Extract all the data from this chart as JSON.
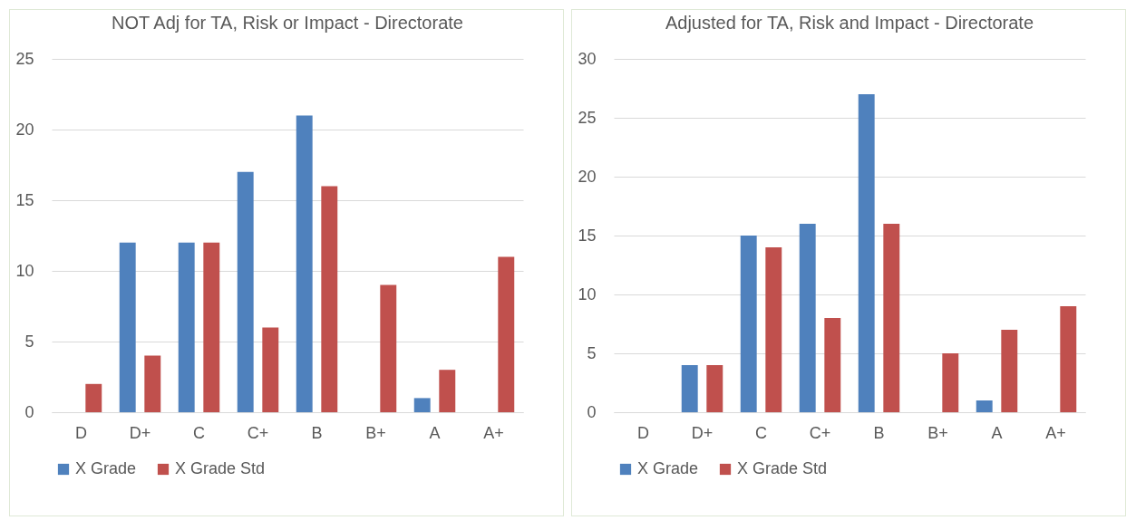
{
  "chart_data": [
    {
      "type": "bar",
      "title": "NOT Adj for TA, Risk or  Impact -  Directorate",
      "categories": [
        "D",
        "D+",
        "C",
        "C+",
        "B",
        "B+",
        "A",
        "A+"
      ],
      "series": [
        {
          "name": "X Grade",
          "color": "#4f81bd",
          "values": [
            0,
            12,
            12,
            17,
            21,
            0,
            1,
            0
          ]
        },
        {
          "name": "X Grade Std",
          "color": "#c0504d",
          "values": [
            2,
            4,
            12,
            6,
            16,
            9,
            3,
            11
          ]
        }
      ],
      "ylim": [
        0,
        25
      ],
      "yticks": [
        0,
        5,
        10,
        15,
        20,
        25
      ],
      "grid": "y",
      "legend": "bottom"
    },
    {
      "type": "bar",
      "title": "Adjusted for TA, Risk and Impact -  Directorate",
      "categories": [
        "D",
        "D+",
        "C",
        "C+",
        "B",
        "B+",
        "A",
        "A+"
      ],
      "series": [
        {
          "name": "X Grade",
          "color": "#4f81bd",
          "values": [
            0,
            4,
            15,
            16,
            27,
            0,
            1,
            0
          ]
        },
        {
          "name": "X Grade Std",
          "color": "#c0504d",
          "values": [
            0,
            4,
            14,
            8,
            16,
            5,
            7,
            9
          ]
        }
      ],
      "ylim": [
        0,
        30
      ],
      "yticks": [
        0,
        5,
        10,
        15,
        20,
        25,
        30
      ],
      "grid": "y",
      "legend": "bottom"
    }
  ]
}
